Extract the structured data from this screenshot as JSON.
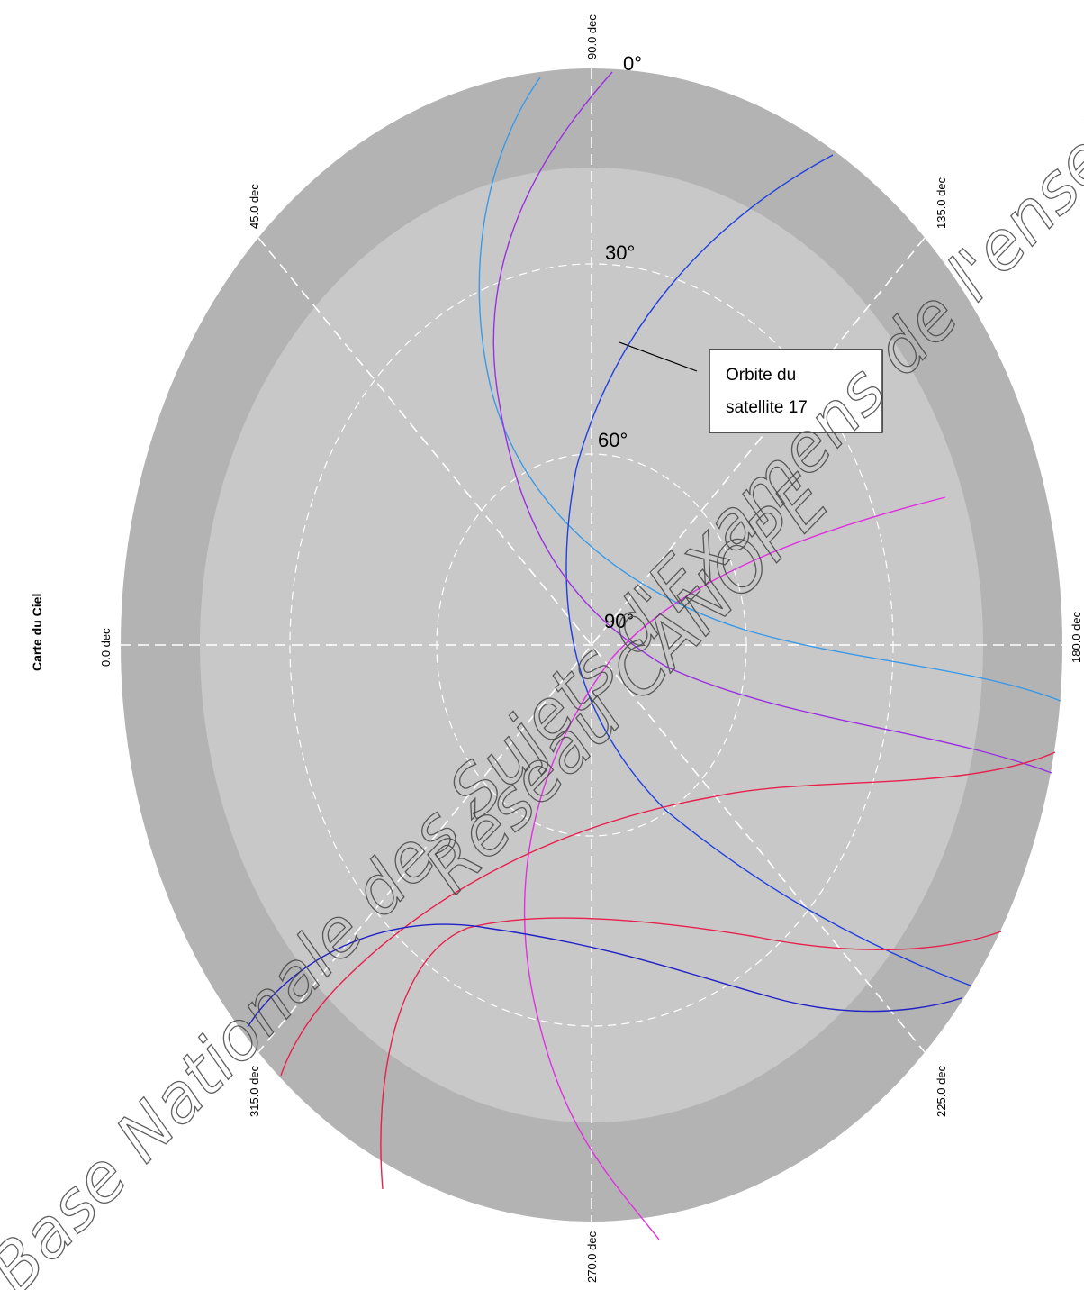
{
  "title": "Carte du Ciel",
  "azimuth_labels": [
    "90.0 dec",
    "135.0 dec",
    "180.0 dec",
    "225.0 dec",
    "270.0 dec",
    "315.0 dec",
    "0.0 dec",
    "45.0 dec"
  ],
  "elevation_labels": [
    "0°",
    "30°",
    "60°",
    "90°"
  ],
  "callout": {
    "line1": "Orbite du",
    "line2": "satellite 17"
  },
  "watermark": {
    "line1": "Base Nationale des Sujets d'Examens de l'enseignement professionnel",
    "line2": "Réseau CANOPE"
  },
  "colors": {
    "outer_ring": "#b3b3b3",
    "inner_disk": "#c8c8c8",
    "grid": "#ffffff",
    "orbit_light_blue": "#3a9ae8",
    "orbit_blue": "#2040e0",
    "orbit_purple": "#9a30e0",
    "orbit_magenta": "#e030e0",
    "orbit_red": "#e8204c",
    "orbit_navy": "#2020c8"
  }
}
